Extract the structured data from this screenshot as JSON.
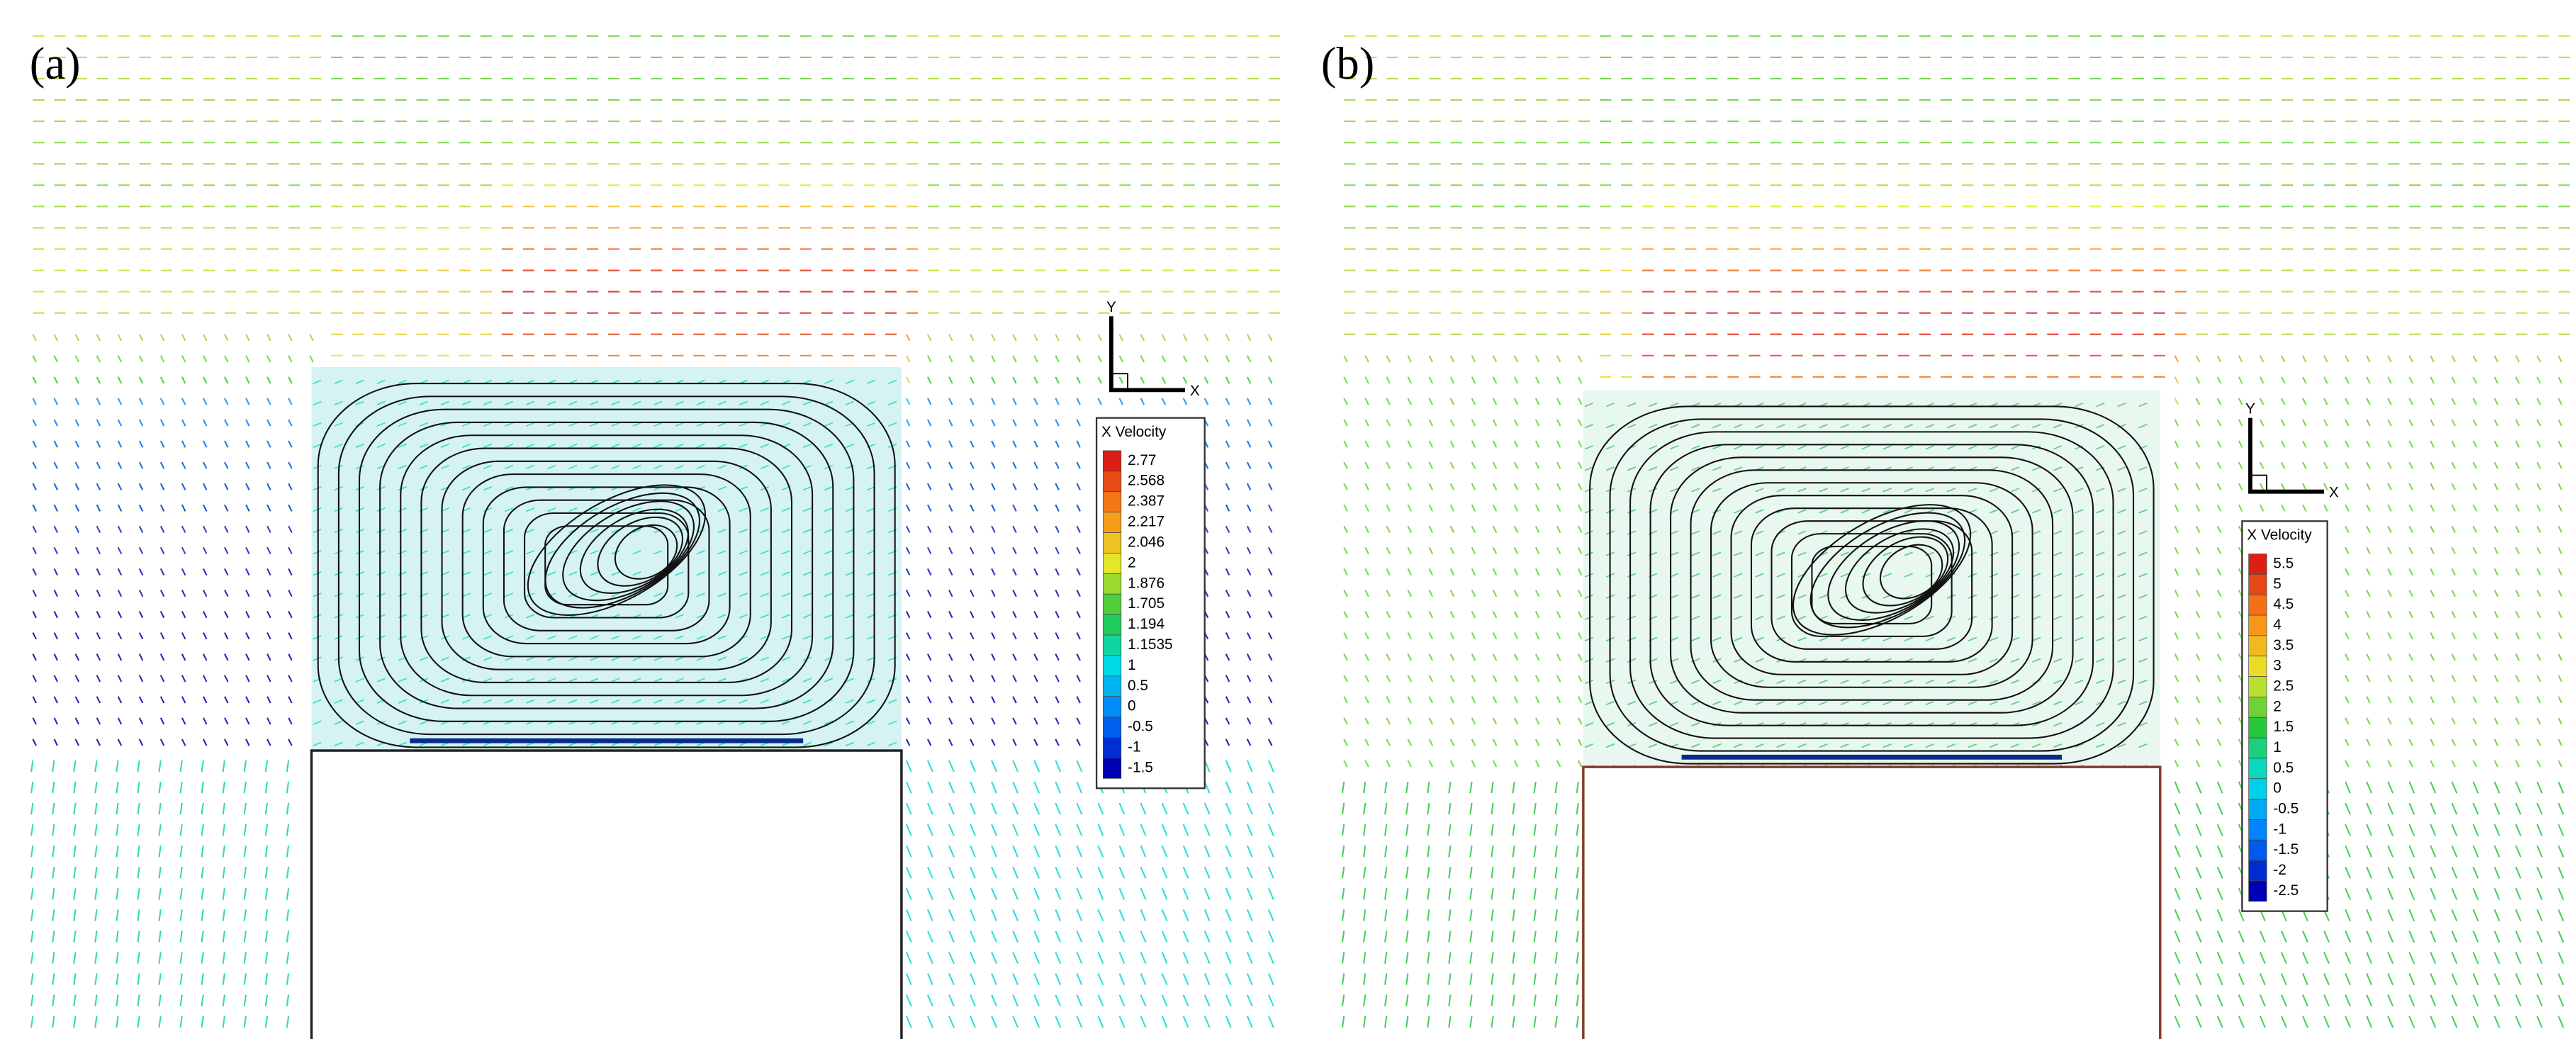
{
  "panels": [
    {
      "label": "(a)",
      "axis": {
        "y": "Y",
        "x": "X"
      },
      "legend": {
        "title": "X Velocity",
        "levels": [
          "2.77",
          "2.568",
          "2.387",
          "2.217",
          "2.046",
          "2",
          "1.876",
          "1.705",
          "1.194",
          "1.1535",
          "1",
          "0.5",
          "0",
          "-0.5",
          "-1",
          "-1.5"
        ]
      }
    },
    {
      "label": "(b)",
      "axis": {
        "y": "Y",
        "x": "X"
      },
      "legend": {
        "title": "X Velocity",
        "levels": [
          "5.5",
          "5",
          "4.5",
          "4",
          "3.5",
          "3",
          "2.5",
          "2",
          "1.5",
          "1",
          "0.5",
          "0",
          "-0.5",
          "-1",
          "-1.5",
          "-2",
          "-2.5"
        ]
      }
    }
  ]
}
